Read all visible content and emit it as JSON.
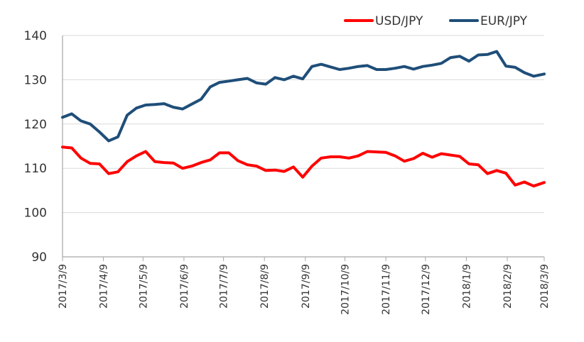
{
  "chart_data": {
    "type": "line",
    "title": "",
    "xlabel": "",
    "ylabel": "",
    "ylim": [
      90,
      140
    ],
    "yticks": [
      "140",
      "130",
      "120",
      "110",
      "100",
      "90"
    ],
    "x_ticks": [
      "2017/3/9",
      "2017/4/9",
      "2017/5/9",
      "2017/6/9",
      "2017/7/9",
      "2017/8/9",
      "2017/9/9",
      "2017/10/9",
      "2017/11/9",
      "2017/12/9",
      "2018/1/9",
      "2018/2/9",
      "2018/3/9"
    ],
    "grid": "horizontal",
    "legend_position": "top-right",
    "x": [
      "2017/3/9",
      "2017/3/16",
      "2017/3/23",
      "2017/3/30",
      "2017/4/6",
      "2017/4/13",
      "2017/4/20",
      "2017/4/27",
      "2017/5/4",
      "2017/5/11",
      "2017/5/18",
      "2017/5/25",
      "2017/6/1",
      "2017/6/8",
      "2017/6/15",
      "2017/6/22",
      "2017/6/29",
      "2017/7/6",
      "2017/7/13",
      "2017/7/20",
      "2017/7/27",
      "2017/8/3",
      "2017/8/10",
      "2017/8/17",
      "2017/8/24",
      "2017/8/31",
      "2017/9/7",
      "2017/9/14",
      "2017/9/21",
      "2017/9/28",
      "2017/10/5",
      "2017/10/12",
      "2017/10/19",
      "2017/10/26",
      "2017/11/2",
      "2017/11/9",
      "2017/11/16",
      "2017/11/23",
      "2017/11/30",
      "2017/12/7",
      "2017/12/14",
      "2017/12/21",
      "2017/12/28",
      "2018/1/4",
      "2018/1/11",
      "2018/1/18",
      "2018/1/25",
      "2018/2/1",
      "2018/2/8",
      "2018/2/15",
      "2018/2/22",
      "2018/3/1",
      "2018/3/9"
    ],
    "series": [
      {
        "name": "USD/JPY",
        "color": "#ff0000",
        "values": [
          114.8,
          114.6,
          112.3,
          111.1,
          111.0,
          108.8,
          109.2,
          111.5,
          112.8,
          113.8,
          111.5,
          111.3,
          111.2,
          110.0,
          110.5,
          111.3,
          111.9,
          113.5,
          113.5,
          111.7,
          110.8,
          110.5,
          109.5,
          109.6,
          109.3,
          110.3,
          108.0,
          110.5,
          112.3,
          112.6,
          112.6,
          112.3,
          112.8,
          113.8,
          113.7,
          113.6,
          112.8,
          111.6,
          112.2,
          113.4,
          112.5,
          113.3,
          113.0,
          112.7,
          111.0,
          110.8,
          108.8,
          109.5,
          108.9,
          106.2,
          106.9,
          106.0,
          106.8
        ]
      },
      {
        "name": "EUR/JPY",
        "color": "#1f4e79",
        "values": [
          121.5,
          122.3,
          120.7,
          120.0,
          118.2,
          116.2,
          117.1,
          122.0,
          123.6,
          124.3,
          124.4,
          124.6,
          123.8,
          123.4,
          124.5,
          125.6,
          128.4,
          129.4,
          129.7,
          130.0,
          130.3,
          129.3,
          129.0,
          130.5,
          130.0,
          130.8,
          130.2,
          133.0,
          133.5,
          132.9,
          132.3,
          132.6,
          133.0,
          133.2,
          132.3,
          132.3,
          132.6,
          133.0,
          132.4,
          133.0,
          133.3,
          133.7,
          135.0,
          135.3,
          134.2,
          135.6,
          135.7,
          136.4,
          133.1,
          132.8,
          131.6,
          130.8,
          131.3
        ]
      }
    ]
  }
}
